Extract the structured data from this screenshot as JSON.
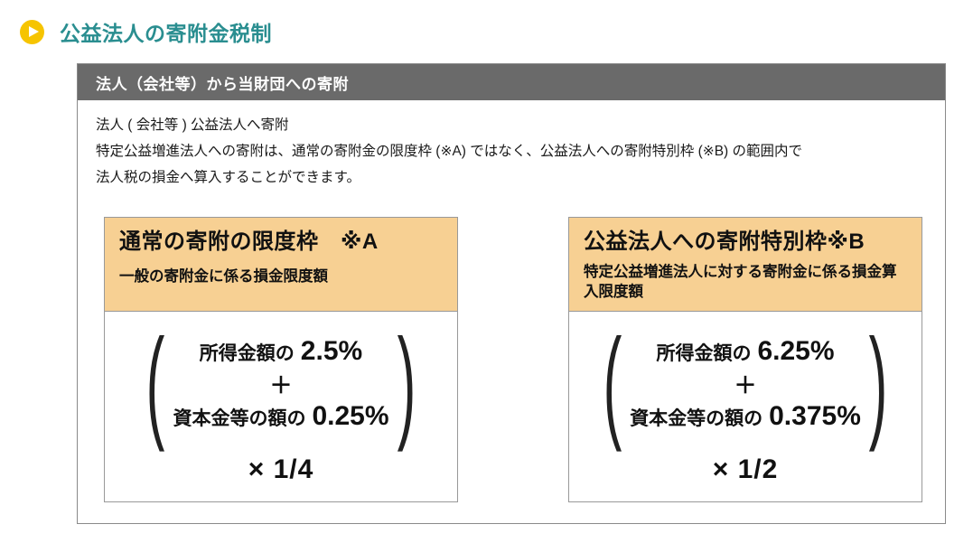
{
  "colors": {
    "accent_teal": "#2a8e90",
    "bullet_yellow": "#f6c400",
    "panel_header_gray": "#6a6a6a",
    "box_header_tan": "#f7d093",
    "panel_border_gray": "#8a8a8a",
    "box_border_gray": "#999999"
  },
  "section": {
    "title": "公益法人の寄附金税制"
  },
  "panel": {
    "header": "法人（会社等）から当財団への寄附",
    "body_lines": {
      "line1": "法人 ( 会社等 ) 公益法人へ寄附",
      "line2": "特定公益増進法人への寄附は、通常の寄附金の限度枠 (※A) ではなく、公益法人への寄附特別枠 (※B) の範囲内で",
      "line3": "法人税の損金へ算入することができます。"
    },
    "boxes": [
      {
        "title": "通常の寄附の限度枠　※A",
        "subtitle": "一般の寄附金に係る損金限度額",
        "formula": {
          "paren_open": "(",
          "paren_close": ")",
          "term1_label": "所得金額の",
          "term1_value": "2.5%",
          "operator": "＋",
          "term2_label": "資本金等の額の",
          "term2_value": "0.25%",
          "multiplier": "× 1/4"
        }
      },
      {
        "title": "公益法人への寄附特別枠※B",
        "subtitle": "特定公益増進法人に対する寄附金に係る損金算入限度額",
        "formula": {
          "paren_open": "(",
          "paren_close": ")",
          "term1_label": "所得金額の",
          "term1_value": "6.25%",
          "operator": "＋",
          "term2_label": "資本金等の額の",
          "term2_value": "0.375%",
          "multiplier": "× 1/2"
        }
      }
    ]
  }
}
